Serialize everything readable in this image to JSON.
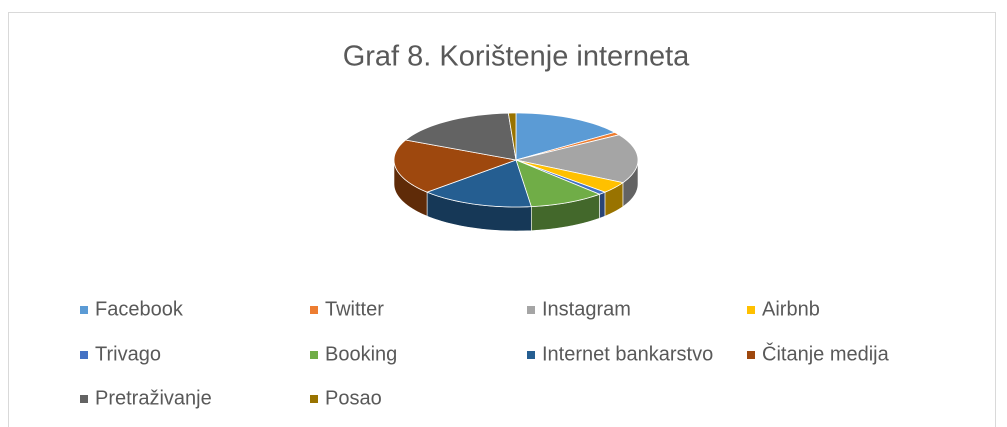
{
  "chart_data": {
    "type": "pie3d",
    "title": "Graf 8. Korištenje interneta",
    "categories": [
      "Facebook",
      "Twitter",
      "Instagram",
      "Airbnb",
      "Trivago",
      "Booking",
      "Internet bankarstvo",
      "Čitanje medija",
      "Pretraživanje",
      "Posao"
    ],
    "values": [
      15,
      1,
      17,
      4,
      1,
      10,
      15,
      19,
      17,
      1
    ],
    "colors": [
      "#5b9bd5",
      "#ed7d31",
      "#a5a5a5",
      "#ffc000",
      "#4472c4",
      "#70ad47",
      "#255e91",
      "#9e480e",
      "#636363",
      "#997300"
    ],
    "legend": "bottom"
  }
}
